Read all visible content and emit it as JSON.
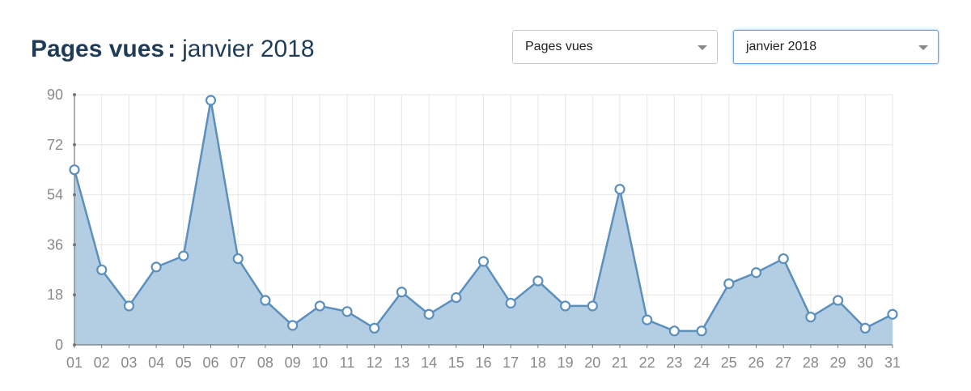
{
  "header": {
    "title_strong": "Pages vues",
    "title_sep": ":",
    "title_period": "janvier 2018"
  },
  "controls": {
    "metric_select": {
      "value": "Pages vues"
    },
    "month_select": {
      "value": "janvier 2018"
    }
  },
  "colors": {
    "line": "#5b8fbd",
    "area": "#b3cde3",
    "marker_fill": "#ffffff",
    "grid": "#e6e6e6",
    "axis": "#777777"
  },
  "chart_data": {
    "type": "area",
    "categories": [
      "01",
      "02",
      "03",
      "04",
      "05",
      "06",
      "07",
      "08",
      "09",
      "10",
      "11",
      "12",
      "13",
      "14",
      "15",
      "16",
      "17",
      "18",
      "19",
      "20",
      "21",
      "22",
      "23",
      "24",
      "25",
      "26",
      "27",
      "28",
      "29",
      "30",
      "31"
    ],
    "series": [
      {
        "values": [
          63,
          27,
          14,
          28,
          32,
          88,
          31,
          16,
          7,
          14,
          12,
          6,
          19,
          11,
          17,
          30,
          15,
          23,
          14,
          14,
          56,
          9,
          5,
          5,
          22,
          26,
          31,
          10,
          16,
          6,
          11
        ]
      }
    ],
    "yticks": [
      0,
      18,
      36,
      54,
      72,
      90
    ],
    "ylim": [
      0,
      90
    ],
    "grid": true
  }
}
